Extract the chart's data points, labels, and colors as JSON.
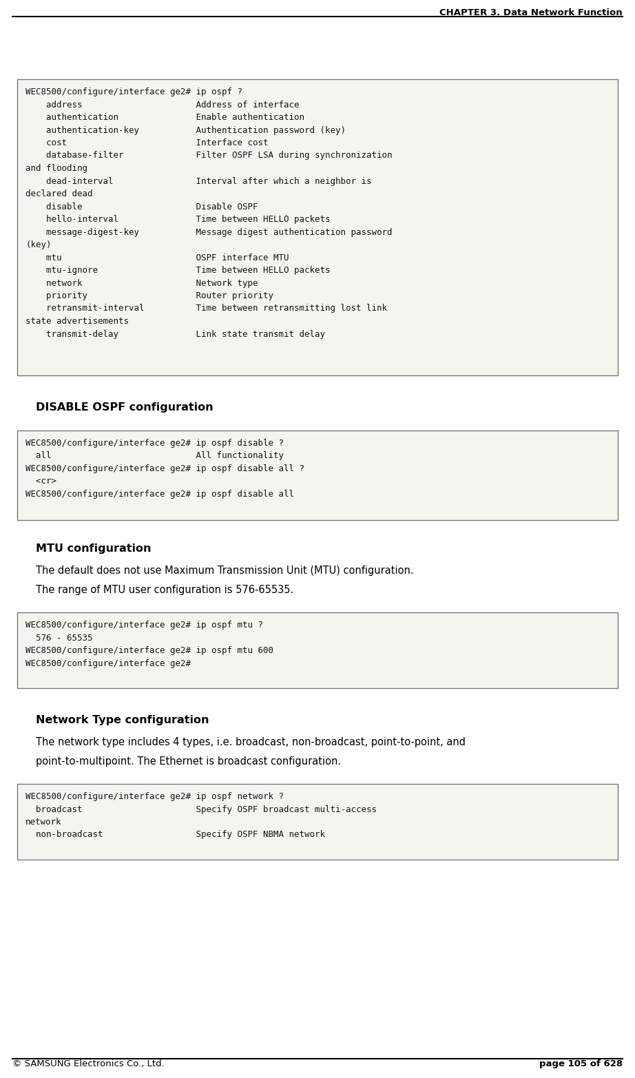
{
  "header_text": "CHAPTER 3. Data Network Function",
  "footer_left": "© SAMSUNG Electronics Co., Ltd.",
  "footer_right": "page 105 of 628",
  "bg_color": "#ffffff",
  "box_bg": "#f5f5f0",
  "box_border": "#888888",
  "box1_text": "WEC8500/configure/interface ge2# ip ospf ?\n    address                      Address of interface\n    authentication               Enable authentication\n    authentication-key           Authentication password (key)\n    cost                         Interface cost\n    database-filter              Filter OSPF LSA during synchronization\nand flooding\n    dead-interval                Interval after which a neighbor is\ndeclared dead\n    disable                      Disable OSPF\n    hello-interval               Time between HELLO packets\n    message-digest-key           Message digest authentication password\n(key)\n    mtu                          OSPF interface MTU\n    mtu-ignore                   Time between HELLO packets\n    network                      Network type\n    priority                     Router priority\n    retransmit-interval          Time between retransmitting lost link\nstate advertisements\n    transmit-delay               Link state transmit delay",
  "section2_title": "DISABLE OSPF configuration",
  "box2_text": "WEC8500/configure/interface ge2# ip ospf disable ?\n  all                            All functionality\nWEC8500/configure/interface ge2# ip ospf disable all ?\n  <cr>\nWEC8500/configure/interface ge2# ip ospf disable all",
  "section3_title": "MTU configuration",
  "section3_body1": "The default does not use Maximum Transmission Unit (MTU) configuration.",
  "section3_body2": "The range of MTU user configuration is 576-65535.",
  "box3_text": "WEC8500/configure/interface ge2# ip ospf mtu ?\n  576 - 65535\nWEC8500/configure/interface ge2# ip ospf mtu 600\nWEC8500/configure/interface ge2#",
  "section4_title": "Network Type configuration",
  "section4_body1": "The network type includes 4 types, i.e. broadcast, non-broadcast, point-to-point, and",
  "section4_body2": "point-to-multipoint. The Ethernet is broadcast configuration.",
  "box4_text": "WEC8500/configure/interface ge2# ip ospf network ?\n  broadcast                      Specify OSPF broadcast multi-access\nnetwork\n  non-broadcast                  Specify OSPF NBMA network",
  "code_fontsize": 9.0,
  "body_fontsize": 10.5,
  "section_fontsize": 11.5,
  "header_fontsize": 9.5,
  "footer_fontsize": 9.5
}
